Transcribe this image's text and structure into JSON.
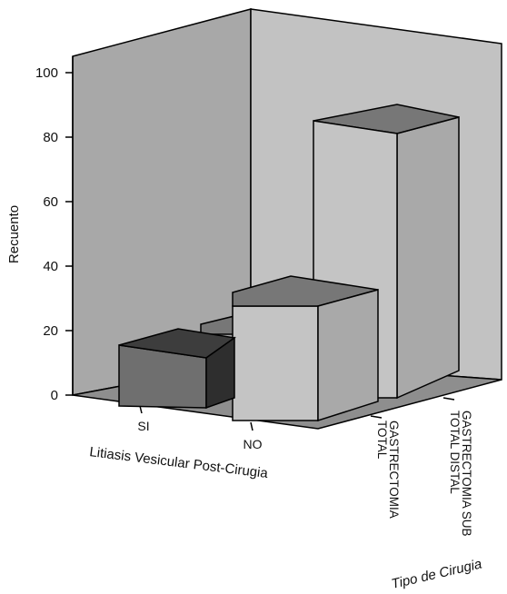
{
  "chart_data": {
    "type": "bar",
    "title": "",
    "ylabel": "Recuento",
    "xlabel": "Litiasis Vesicular Post-Cirugia",
    "zlabel": "Tipo de Cirugia",
    "ylim": [
      0,
      100
    ],
    "yticks": [
      "0",
      "20",
      "40",
      "60",
      "80",
      "100"
    ],
    "categories": [
      "SI",
      "NO"
    ],
    "series": [
      {
        "name": "GASTRECTOMIA TOTAL",
        "values": [
          16,
          21
        ]
      },
      {
        "name": "GASTRECTOMIA SUB TOTAL DISTAL",
        "values": [
          0,
          86
        ]
      }
    ],
    "grid": false,
    "legend": "none",
    "colors": {
      "back_wall": "#a8a8a8",
      "side_wall": "#c2c2c2",
      "floor": "#8e8e8e",
      "bar_si_front": "#6f6f6f",
      "bar_si_top": "#3d3d3d",
      "bar_si_side": "#2e2e2e",
      "bar_light_front": "#c4c4c4",
      "bar_light_top": "#777777",
      "bar_light_side": "#a9a9a9"
    }
  }
}
